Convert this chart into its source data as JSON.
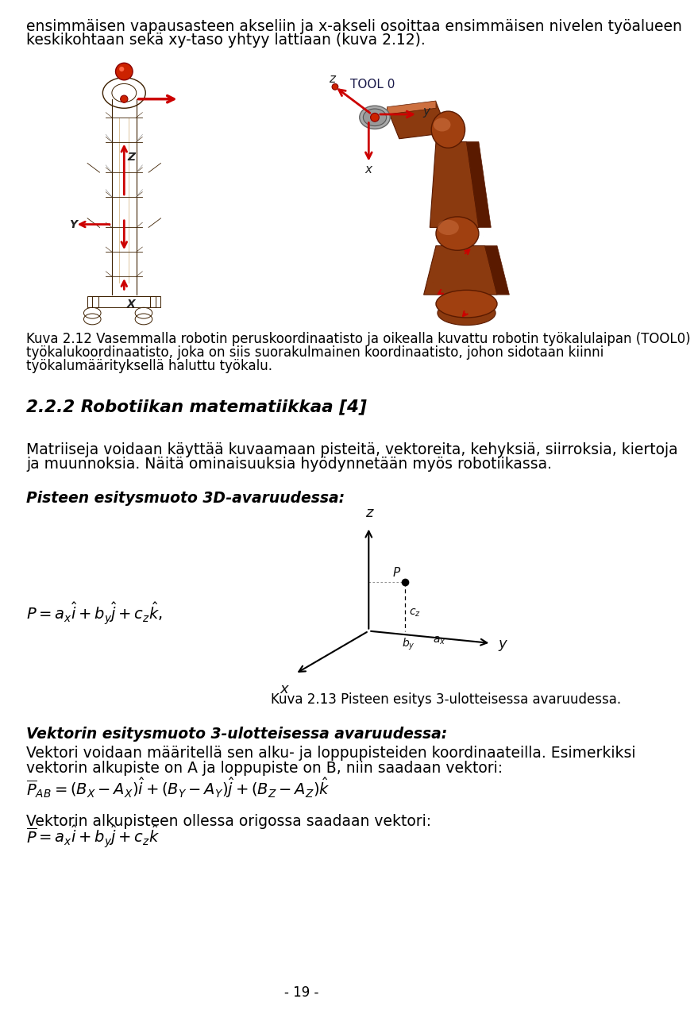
{
  "bg_color": "#ffffff",
  "text_color": "#000000",
  "page_width": 9.6,
  "page_height": 16.4,
  "intro_text_line1": "ensimmäisen vapausasteen akseliin ja x-akseli osoittaa ensimmäisen nivelen työalueen",
  "intro_text_line2": "keskikohtaan sekä xy-taso yhtyy lattiaan (kuva 2.12).",
  "caption_text_line1": "Kuva 2.12 Vasemmalla robotin peruskoordinaatisto ja oikealla kuvattu robotin työkalulaipan (TOOL0)",
  "caption_text_line2": "työkalukoordinaatisto, joka on siis suorakulmainen koordinaatisto, johon sidotaan kiinni",
  "caption_text_line3": "työkalumäärityksellä haluttu työkalu.",
  "section_title": "2.2.2 Robotiikan matematiikkaa [4]",
  "para1_line1": "Matriiseja voidaan käyttää kuvaamaan pisteitä, vektoreita, kehyksiä, siirroksia, kiertoja",
  "para1_line2": "ja muunnoksia. Näitä ominaisuuksia hyödynnetään myös robotiikassa.",
  "pisteen_title": "Pisteen esitysmuoto 3D-avaruudessa:",
  "kuva213_caption": "Kuva 2.13 Pisteen esitys 3-ulotteisessa avaruudessa.",
  "vektori_title": "Vektorin esitysmuoto 3-ulotteisessa avaruudessa:",
  "vektori_line1": "Vektori voidaan määritellä sen alku- ja loppupisteiden koordinaateilla. Esimerkiksi",
  "vektori_line2": "vektorin alkupiste on A ja loppupiste on B, niin saadaan vektori:",
  "vektori_line3": "Vektorin alkupisteen ollessa origossa saadaan vektori:",
  "page_number": "- 19 -",
  "font_size_intro": 13.5,
  "font_size_caption": 12.0,
  "font_size_section": 15.5,
  "font_size_para": 13.5,
  "font_size_formula": 14,
  "font_size_page": 12,
  "left_robot_color_main": "#8B6914",
  "left_robot_color_dark": "#3d2000",
  "left_robot_color_mid": "#b07820",
  "right_robot_color_main": "#8B3A0F",
  "right_robot_color_dark": "#5a1a00",
  "right_robot_color_light": "#CD7040",
  "right_robot_color_mid": "#A04010"
}
